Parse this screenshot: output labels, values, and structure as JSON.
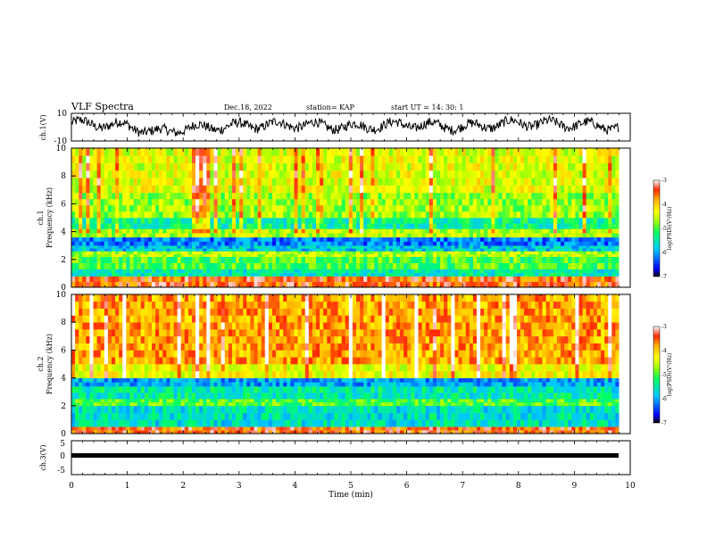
{
  "header": {
    "title": "VLF Spectra",
    "date": "Dec.18, 2022",
    "station": "station= KAP",
    "start": "start  UT =   14: 30: 1"
  },
  "colors": {
    "background": "#ffffff",
    "trace": "#000000",
    "colormap": [
      "#000000",
      "#0000ff",
      "#00c8ff",
      "#00ff66",
      "#aaff00",
      "#ffff00",
      "#ffb000",
      "#ff2a00",
      "#ffffff"
    ]
  },
  "chart_data": [
    {
      "type": "line",
      "panel": "ch1-waveform",
      "ylabel": "ch.1(V)",
      "ylim": [
        -10,
        10
      ],
      "yticklabels": [
        "10",
        "-10"
      ],
      "x": [
        0,
        1,
        1.5,
        2,
        3,
        4,
        5,
        6,
        7,
        8,
        9,
        9.8
      ],
      "y": [
        3,
        1,
        -4,
        -1,
        1,
        2,
        0,
        2,
        0,
        3,
        2,
        0
      ],
      "note_amplitude": "noisy oscillation roughly between -6 and 8 V"
    },
    {
      "type": "heatmap",
      "panel": "ch1-spectrogram",
      "ylabel_1": "ch.1",
      "ylabel_2": "Frequency (kHz)",
      "ylim": [
        0,
        10
      ],
      "yticklabels": [
        "0",
        "2",
        "4",
        "6",
        "8",
        "10"
      ],
      "bands_khz": [
        {
          "from": 0.0,
          "to": 0.8,
          "level": -3.5
        },
        {
          "from": 0.8,
          "to": 1.3,
          "level": -5.5
        },
        {
          "from": 1.3,
          "to": 2.2,
          "level": -5.0
        },
        {
          "from": 2.2,
          "to": 2.6,
          "level": -4.6
        },
        {
          "from": 2.6,
          "to": 3.0,
          "level": -5.8
        },
        {
          "from": 3.0,
          "to": 3.6,
          "level": -6.2
        },
        {
          "from": 3.6,
          "to": 4.2,
          "level": -4.6
        },
        {
          "from": 4.2,
          "to": 5.0,
          "level": -5.4
        },
        {
          "from": 5.0,
          "to": 6.8,
          "level": -4.7
        },
        {
          "from": 6.8,
          "to": 10.0,
          "level": -4.4
        }
      ],
      "colorbar": {
        "label": "log(PSD)(V²/Hz)",
        "range": [
          -7,
          -3
        ],
        "ticks": [
          "-3",
          "-4",
          "-5",
          "-6",
          "-7"
        ]
      }
    },
    {
      "type": "heatmap",
      "panel": "ch2-spectrogram",
      "ylabel_1": "ch.2",
      "ylabel_2": "Frequency (kHz)",
      "ylim": [
        0,
        10
      ],
      "yticklabels": [
        "0",
        "2",
        "4",
        "6",
        "8",
        "10"
      ],
      "bands_khz": [
        {
          "from": 0.0,
          "to": 0.5,
          "level": -3.5
        },
        {
          "from": 0.5,
          "to": 2.0,
          "level": -5.6
        },
        {
          "from": 2.0,
          "to": 2.5,
          "level": -5.0
        },
        {
          "from": 2.5,
          "to": 3.4,
          "level": -5.5
        },
        {
          "from": 3.4,
          "to": 4.0,
          "level": -6.0
        },
        {
          "from": 4.0,
          "to": 5.0,
          "level": -4.3
        },
        {
          "from": 5.0,
          "to": 10.0,
          "level": -3.8
        }
      ],
      "colorbar": {
        "label": "log(PSD)(V²/Hz)",
        "range": [
          -7,
          -3
        ],
        "ticks": [
          "-3",
          "-4",
          "-5",
          "-6",
          "-7"
        ]
      }
    },
    {
      "type": "line",
      "panel": "ch3-waveform",
      "ylabel": "ch.3(V)",
      "ylim": [
        -5,
        5
      ],
      "yticklabels": [
        "5",
        "0",
        "-5"
      ],
      "x": [
        0,
        9.8
      ],
      "y": [
        0,
        0
      ]
    }
  ],
  "xaxis": {
    "label": "Time (min)",
    "range": [
      0,
      10
    ],
    "ticklabels": [
      "0",
      "1",
      "2",
      "3",
      "4",
      "5",
      "6",
      "7",
      "8",
      "9",
      "10"
    ]
  }
}
